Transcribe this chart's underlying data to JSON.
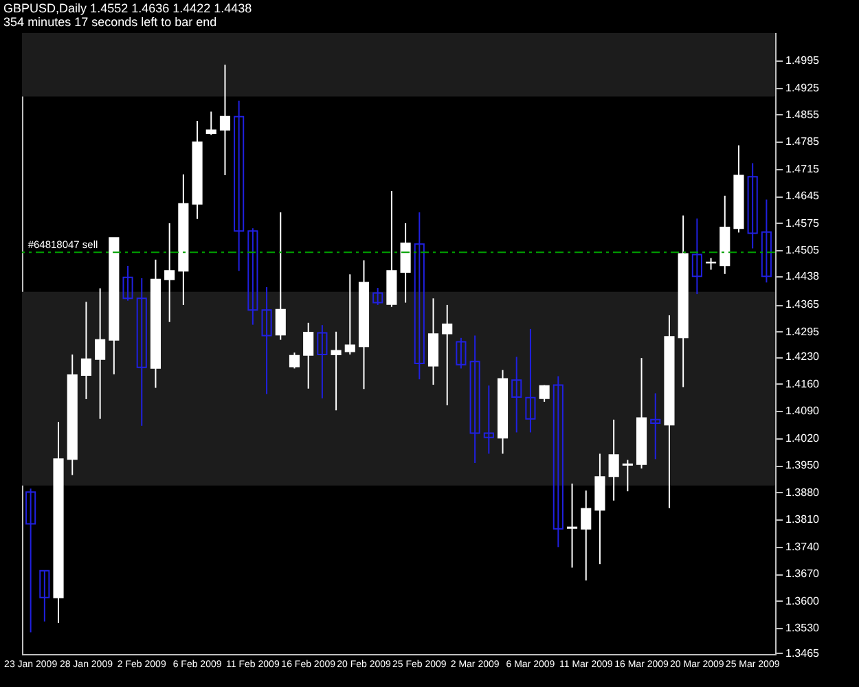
{
  "chart_data": {
    "type": "candlestick",
    "title": "GBPUSD,Daily  1.4552 1.4636 1.4422 1.4438",
    "annotations": [
      "354 minutes 17 seconds left to bar end"
    ],
    "categories": [
      "23 Jan 2009",
      null,
      null,
      null,
      "28 Jan 2009",
      null,
      null,
      null,
      "2 Feb 2009",
      null,
      null,
      null,
      "6 Feb 2009",
      null,
      null,
      null,
      "11 Feb 2009",
      null,
      null,
      null,
      "16 Feb 2009",
      null,
      null,
      null,
      "20 Feb 2009",
      null,
      null,
      null,
      "25 Feb 2009",
      null,
      null,
      null,
      "2 Mar 2009",
      null,
      null,
      null,
      "6 Mar 2009",
      null,
      null,
      null,
      "11 Mar 2009",
      null,
      null,
      null,
      "16 Mar 2009",
      null,
      null,
      null,
      "20 Mar 2009",
      null,
      null,
      null,
      "25 Mar 2009",
      null
    ],
    "ohlc": [
      [
        1.3881,
        1.389,
        1.3519,
        1.3799
      ],
      [
        1.3678,
        1.3678,
        1.3547,
        1.3609
      ],
      [
        1.3609,
        1.4062,
        1.3543,
        1.3966
      ],
      [
        1.3966,
        1.4236,
        1.3925,
        1.4183
      ],
      [
        1.4183,
        1.4372,
        1.4121,
        1.4224
      ],
      [
        1.4224,
        1.4407,
        1.407,
        1.4274
      ],
      [
        1.4274,
        1.4537,
        1.4185,
        1.4537
      ],
      [
        1.4435,
        1.4465,
        1.4375,
        1.4381
      ],
      [
        1.4381,
        1.4433,
        1.4052,
        1.4203
      ],
      [
        1.4201,
        1.4481,
        1.415,
        1.443
      ],
      [
        1.443,
        1.4575,
        1.432,
        1.4452
      ],
      [
        1.4452,
        1.4701,
        1.4364,
        1.4625
      ],
      [
        1.4625,
        1.4839,
        1.4586,
        1.4784
      ],
      [
        1.4807,
        1.4863,
        1.4803,
        1.4815
      ],
      [
        1.4816,
        1.4984,
        1.4699,
        1.485
      ],
      [
        1.485,
        1.4891,
        1.4452,
        1.4555
      ],
      [
        1.4555,
        1.4562,
        1.4313,
        1.4351
      ],
      [
        1.4351,
        1.441,
        1.4134,
        1.4285
      ],
      [
        1.4287,
        1.4603,
        1.4274,
        1.4352
      ],
      [
        1.4205,
        1.4241,
        1.42,
        1.4233
      ],
      [
        1.4235,
        1.4318,
        1.4148,
        1.4293
      ],
      [
        1.4292,
        1.4312,
        1.4123,
        1.4236
      ],
      [
        1.4236,
        1.4295,
        1.4092,
        1.4246
      ],
      [
        1.4244,
        1.4443,
        1.4236,
        1.426
      ],
      [
        1.4257,
        1.4479,
        1.4147,
        1.4422
      ],
      [
        1.4395,
        1.4408,
        1.4364,
        1.437
      ],
      [
        1.4366,
        1.4658,
        1.4359,
        1.4452
      ],
      [
        1.4449,
        1.4575,
        1.437,
        1.4523
      ],
      [
        1.4521,
        1.4603,
        1.4172,
        1.4213
      ],
      [
        1.4207,
        1.4381,
        1.4158,
        1.4289
      ],
      [
        1.429,
        1.4364,
        1.4105,
        1.4314
      ],
      [
        1.4269,
        1.4279,
        1.42,
        1.421
      ],
      [
        1.4218,
        1.4285,
        1.3956,
        1.4033
      ],
      [
        1.4033,
        1.4156,
        1.398,
        1.4022
      ],
      [
        1.4021,
        1.4196,
        1.398,
        1.4173
      ],
      [
        1.417,
        1.423,
        1.4035,
        1.4126
      ],
      [
        1.4125,
        1.4302,
        1.4035,
        1.407
      ],
      [
        1.4123,
        1.4157,
        1.4114,
        1.4155
      ],
      [
        1.4157,
        1.418,
        1.3739,
        1.3786
      ],
      [
        1.3788,
        1.3903,
        1.3686,
        1.379
      ],
      [
        1.3786,
        1.3885,
        1.3653,
        1.3838
      ],
      [
        1.3835,
        1.398,
        1.3695,
        1.392
      ],
      [
        1.3922,
        1.4068,
        1.3859,
        1.3977
      ],
      [
        1.3951,
        1.3964,
        1.3883,
        1.3953
      ],
      [
        1.3953,
        1.4227,
        1.3942,
        1.4072
      ],
      [
        1.4068,
        1.4136,
        1.3966,
        1.4059
      ],
      [
        1.4055,
        1.4337,
        1.384,
        1.4282
      ],
      [
        1.428,
        1.4595,
        1.4152,
        1.4496
      ],
      [
        1.4494,
        1.4587,
        1.4392,
        1.4438
      ],
      [
        1.4473,
        1.4485,
        1.4455,
        1.4474
      ],
      [
        1.4466,
        1.4646,
        1.4444,
        1.4564
      ],
      [
        1.4562,
        1.4776,
        1.4551,
        1.4698
      ],
      [
        1.4695,
        1.473,
        1.451,
        1.4549
      ],
      [
        1.4552,
        1.4636,
        1.4422,
        1.4438
      ]
    ],
    "colors": [
      "#2020e0",
      "#2020e0",
      "#ffffff",
      "#ffffff",
      "#ffffff",
      "#ffffff",
      "#ffffff",
      "#2020e0",
      "#2020e0",
      "#ffffff",
      "#ffffff",
      "#ffffff",
      "#ffffff",
      "#ffffff",
      "#ffffff",
      "#2020e0",
      "#2020e0",
      "#2020e0",
      "#ffffff",
      "#ffffff",
      "#ffffff",
      "#2020e0",
      "#ffffff",
      "#ffffff",
      "#ffffff",
      "#2020e0",
      "#ffffff",
      "#ffffff",
      "#2020e0",
      "#ffffff",
      "#ffffff",
      "#2020e0",
      "#2020e0",
      "#2020e0",
      "#ffffff",
      "#2020e0",
      "#2020e0",
      "#ffffff",
      "#2020e0",
      "#ffffff",
      "#ffffff",
      "#ffffff",
      "#ffffff",
      "#ffffff",
      "#ffffff",
      "#2020e0",
      "#ffffff",
      "#ffffff",
      "#2020e0",
      "#ffffff",
      "#ffffff",
      "#ffffff",
      "#2020e0",
      "#2020e0"
    ],
    "ylim": [
      1.3463,
      1.5066
    ],
    "yticks": [
      1.4995,
      1.4925,
      1.4855,
      1.4785,
      1.4715,
      1.4645,
      1.4575,
      1.4505,
      1.4438,
      1.4365,
      1.4295,
      {
        "value": 1.423,
        "label": "1.4230"
      },
      {
        "value": 1.416,
        "label": "1.4160"
      },
      {
        "value": 1.409,
        "label": "1.4090"
      },
      {
        "value": 1.402,
        "label": "1.4020"
      },
      {
        "value": 1.395,
        "label": "1.3950"
      },
      {
        "value": 1.388,
        "label": "1.3880"
      },
      {
        "value": 1.381,
        "label": "1.3810"
      },
      {
        "value": 1.374,
        "label": "1.3740"
      },
      {
        "value": 1.367,
        "label": "1.3670"
      },
      {
        "value": 1.36,
        "label": "1.3600"
      },
      {
        "value": 1.353,
        "label": "1.3530"
      },
      1.3465
    ],
    "ref_lines": [
      {
        "axis": "y",
        "value": 1.45,
        "label": "#64818047 sell",
        "color": "#00a000",
        "line_style": "dashed"
      }
    ],
    "bands": [
      {
        "axis": "y",
        "from": 1.4902,
        "to": 1.5066,
        "color": "#1c1c1c"
      },
      {
        "axis": "y",
        "from": 1.3898,
        "to": 1.4398,
        "color": "#1c1c1c"
      }
    ]
  }
}
